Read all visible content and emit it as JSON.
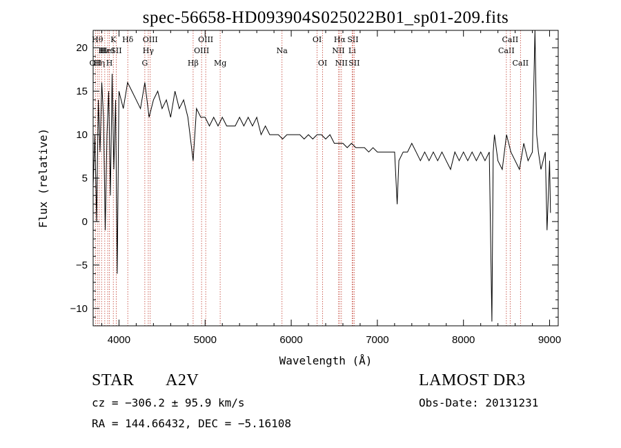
{
  "chart_data": {
    "type": "line",
    "title": "spec-56658-HD093904S025022B01_sp01-209.fits",
    "xlabel": "Wavelength (Å)",
    "ylabel": "Flux (relative)",
    "xlim": [
      3700,
      9100
    ],
    "ylim": [
      -12,
      22
    ],
    "xticks": [
      4000,
      5000,
      6000,
      7000,
      8000,
      9000
    ],
    "yticks": [
      -10,
      -5,
      0,
      5,
      10,
      15,
      20
    ],
    "grid": false,
    "series": [
      {
        "x": [
          3700,
          3720,
          3740,
          3760,
          3780,
          3800,
          3820,
          3840,
          3860,
          3880,
          3900,
          3920,
          3940,
          3960,
          3980,
          4000,
          4050,
          4100,
          4150,
          4200,
          4250,
          4300,
          4350,
          4400,
          4450,
          4500,
          4550,
          4600,
          4650,
          4700,
          4750,
          4800,
          4861,
          4900,
          4950,
          5000,
          5050,
          5100,
          5150,
          5200,
          5250,
          5300,
          5350,
          5400,
          5450,
          5500,
          5550,
          5600,
          5650,
          5700,
          5750,
          5800,
          5850,
          5900,
          5950,
          6000,
          6050,
          6100,
          6150,
          6200,
          6250,
          6300,
          6350,
          6400,
          6450,
          6500,
          6550,
          6600,
          6650,
          6700,
          6750,
          6800,
          6850,
          6900,
          6950,
          7000,
          7050,
          7100,
          7150,
          7200,
          7230,
          7250,
          7300,
          7350,
          7400,
          7450,
          7500,
          7550,
          7600,
          7650,
          7700,
          7750,
          7800,
          7850,
          7900,
          7950,
          8000,
          8050,
          8100,
          8150,
          8200,
          8250,
          8300,
          8330,
          8345,
          8360,
          8400,
          8450,
          8500,
          8550,
          8600,
          8650,
          8700,
          8750,
          8800,
          8830,
          8850,
          8870,
          8900,
          8950,
          8970,
          9000,
          9010
        ],
        "y": [
          4,
          10,
          0,
          14,
          8,
          16,
          12,
          -1,
          10,
          15,
          3,
          17,
          6,
          14,
          -6,
          15,
          13,
          16,
          15,
          14,
          13,
          16,
          12,
          14,
          15,
          13,
          14,
          12,
          15,
          13,
          14,
          12,
          7,
          13,
          12,
          12,
          11,
          12,
          11,
          12,
          11,
          11,
          11,
          12,
          11,
          12,
          11,
          12,
          10,
          11,
          10,
          10,
          10,
          9.5,
          10,
          10,
          10,
          10,
          9.5,
          10,
          9.5,
          10,
          10,
          9.5,
          10,
          9,
          9,
          9,
          8.5,
          9,
          8.5,
          8.5,
          8.5,
          8,
          8.5,
          8,
          8,
          8,
          8,
          8,
          2,
          7,
          8,
          8,
          9,
          8,
          7,
          8,
          7,
          8,
          7,
          8,
          7,
          6,
          8,
          7,
          8,
          7,
          8,
          7,
          8,
          7,
          8,
          -11.5,
          8,
          10,
          7,
          6,
          10,
          8,
          7,
          6,
          9,
          7,
          8,
          22,
          10,
          8,
          6,
          8,
          -1,
          7,
          1
        ]
      }
    ],
    "lines": [
      {
        "x": 3727,
        "label": "OII",
        "row": 3
      },
      {
        "x": 3750,
        "label": "Hθ",
        "row": 1
      },
      {
        "x": 3771,
        "label": "Hη",
        "row": 3
      },
      {
        "x": 3798,
        "label": "H",
        "row": 2
      },
      {
        "x": 3835,
        "label": "Hε",
        "row": 2
      },
      {
        "x": 3869,
        "label": "HeI",
        "row": 2
      },
      {
        "x": 3889,
        "label": "H",
        "row": 3
      },
      {
        "x": 3934,
        "label": "K",
        "row": 1
      },
      {
        "x": 3968,
        "label": "SII",
        "row": 2
      },
      {
        "x": 4102,
        "label": "Hδ",
        "row": 1
      },
      {
        "x": 4300,
        "label": "G",
        "row": 3
      },
      {
        "x": 4340,
        "label": "Hγ",
        "row": 2
      },
      {
        "x": 4363,
        "label": "OIII",
        "row": 1
      },
      {
        "x": 4861,
        "label": "Hβ",
        "row": 3
      },
      {
        "x": 4959,
        "label": "OIII",
        "row": 2
      },
      {
        "x": 5007,
        "label": "OIII",
        "row": 1
      },
      {
        "x": 5175,
        "label": "Mg",
        "row": 3
      },
      {
        "x": 5893,
        "label": "Na",
        "row": 2
      },
      {
        "x": 6300,
        "label": "OI",
        "row": 1
      },
      {
        "x": 6364,
        "label": "OI",
        "row": 3
      },
      {
        "x": 6548,
        "label": "NII",
        "row": 2
      },
      {
        "x": 6563,
        "label": "Hα",
        "row": 1
      },
      {
        "x": 6583,
        "label": "NII",
        "row": 3
      },
      {
        "x": 6707,
        "label": "Li",
        "row": 2
      },
      {
        "x": 6716,
        "label": "SII",
        "row": 1
      },
      {
        "x": 6731,
        "label": "SII",
        "row": 3
      },
      {
        "x": 8498,
        "label": "CaII",
        "row": 2
      },
      {
        "x": 8542,
        "label": "CaII",
        "row": 1
      },
      {
        "x": 8662,
        "label": "CaII",
        "row": 3
      }
    ]
  },
  "info": {
    "class": "STAR",
    "subclass": "A2V",
    "survey": "LAMOST DR3",
    "cz": "cz = −306.2 ± 95.9 km/s",
    "obs_date": "Obs-Date: 20131231",
    "radec": "RA = 144.66432, DEC =  −5.16108"
  },
  "colors": {
    "line": "#000000",
    "marker": "#c0392b",
    "axis": "#000000"
  }
}
